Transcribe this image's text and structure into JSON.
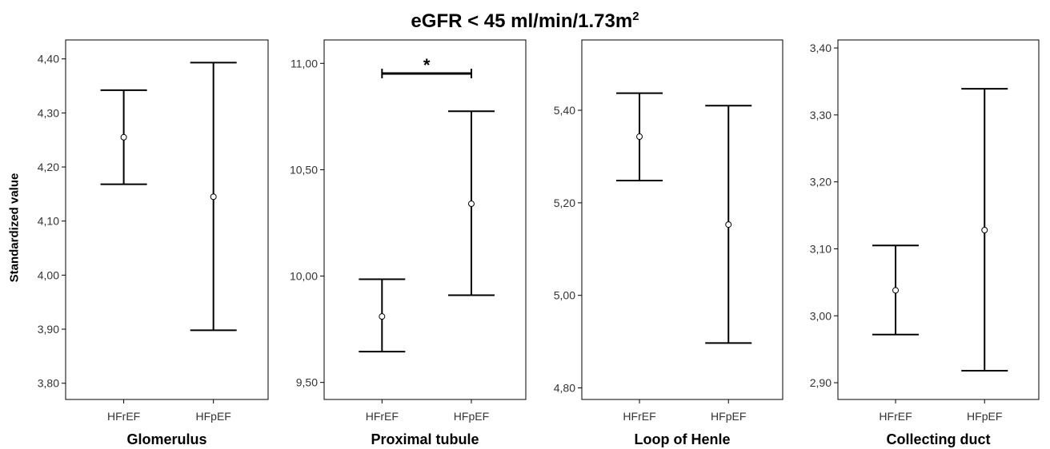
{
  "title_main": "eGFR < 45 ml/min/1.73m",
  "title_sup": "2",
  "ylabel": "Standardized value",
  "chart_data": [
    {
      "type": "errorbar",
      "panel_label": "Glomerulus",
      "categories": [
        "HFrEF",
        "HFpEF"
      ],
      "mean": [
        4.255,
        4.145
      ],
      "lower": [
        4.168,
        3.898
      ],
      "upper": [
        4.342,
        4.393
      ],
      "ylim": [
        3.77,
        4.435
      ],
      "yticks": [
        3.8,
        3.9,
        4.0,
        4.1,
        4.2,
        4.3,
        4.4
      ],
      "ytick_labels": [
        "3,80",
        "3,90",
        "4,00",
        "4,10",
        "4,20",
        "4,30",
        "4,40"
      ],
      "significance": null
    },
    {
      "type": "errorbar",
      "panel_label": "Proximal tubule",
      "categories": [
        "HFrEF",
        "HFpEF"
      ],
      "mean": [
        9.81,
        10.34
      ],
      "lower": [
        9.645,
        9.91
      ],
      "upper": [
        9.985,
        10.775
      ],
      "ylim": [
        9.42,
        11.11
      ],
      "yticks": [
        9.5,
        10.0,
        10.5,
        11.0
      ],
      "ytick_labels": [
        "9,50",
        "10,00",
        "10,50",
        "11,00"
      ],
      "significance": {
        "text": "*",
        "between": [
          0,
          1
        ]
      }
    },
    {
      "type": "errorbar",
      "panel_label": "Loop of Henle",
      "categories": [
        "HFrEF",
        "HFpEF"
      ],
      "mean": [
        5.343,
        5.153
      ],
      "lower": [
        5.248,
        4.897
      ],
      "upper": [
        5.437,
        5.41
      ],
      "ylim": [
        4.775,
        5.552
      ],
      "yticks": [
        4.8,
        5.0,
        5.2,
        5.4
      ],
      "ytick_labels": [
        "4,80",
        "5,00",
        "5,20",
        "5,40"
      ],
      "significance": null
    },
    {
      "type": "errorbar",
      "panel_label": "Collecting duct",
      "categories": [
        "HFrEF",
        "HFpEF"
      ],
      "mean": [
        3.038,
        3.128
      ],
      "lower": [
        2.972,
        2.918
      ],
      "upper": [
        3.105,
        3.339
      ],
      "ylim": [
        2.875,
        3.412
      ],
      "yticks": [
        2.9,
        3.0,
        3.1,
        3.2,
        3.3,
        3.4
      ],
      "ytick_labels": [
        "2,90",
        "3,00",
        "3,10",
        "3,20",
        "3,30",
        "3,40"
      ],
      "significance": null
    }
  ]
}
